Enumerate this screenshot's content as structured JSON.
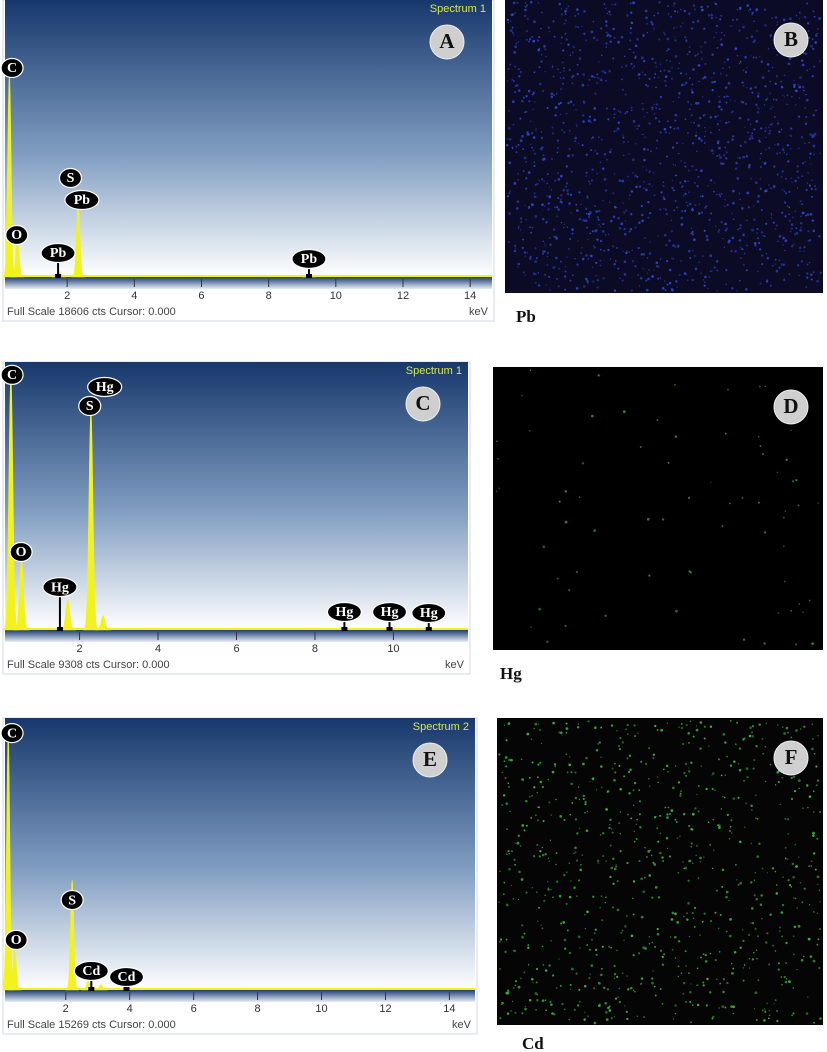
{
  "chart_data": [
    {
      "type": "spectrum",
      "title": "Spectrum 1",
      "panel_label": "A",
      "footer": "Full Scale 18606 cts Cursor: 0.000",
      "x_unit": "keV",
      "xlim": [
        0.15,
        14.65
      ],
      "xticks": [
        2,
        4,
        6,
        8,
        10,
        12,
        14
      ],
      "ylim": [
        0,
        18606
      ],
      "color": "#f2f21e",
      "peaks": {
        "x": [
          0.28,
          0.52,
          2.33,
          1.75,
          9.2
        ],
        "values": [
          13570,
          2500,
          4840,
          400,
          150
        ]
      },
      "annotations": [
        {
          "text": "C",
          "x": 0.36,
          "y": 14040,
          "pin": false
        },
        {
          "text": "O",
          "x": 0.5,
          "y": 2820,
          "pin": false
        },
        {
          "text": "S",
          "x": 2.1,
          "y": 6650,
          "pin": false
        },
        {
          "text": "Pb",
          "x": 2.44,
          "y": 5170,
          "pin": false
        },
        {
          "text": "Pb",
          "x": 1.73,
          "y": 1610,
          "pin": true
        },
        {
          "text": "Pb",
          "x": 9.2,
          "y": 1210,
          "pin": true
        }
      ]
    },
    {
      "type": "spectrum",
      "title": "Spectrum 1",
      "panel_label": "C",
      "footer": "Full Scale 9308 cts Cursor: 0.000",
      "x_unit": "keV",
      "xlim": [
        0.1,
        11.9
      ],
      "xticks": [
        2,
        4,
        6,
        8,
        10
      ],
      "ylim": [
        0,
        9308
      ],
      "color": "#f2f21e",
      "peaks": {
        "x": [
          0.25,
          0.52,
          2.29,
          1.7,
          2.6
        ],
        "values": [
          8860,
          2430,
          7640,
          1040,
          500
        ]
      },
      "annotations": [
        {
          "text": "C",
          "x": 0.28,
          "y": 8860,
          "pin": false
        },
        {
          "text": "Hg",
          "x": 2.64,
          "y": 8440,
          "pin": false
        },
        {
          "text": "S",
          "x": 2.26,
          "y": 7780,
          "pin": false
        },
        {
          "text": "O",
          "x": 0.51,
          "y": 2710,
          "pin": false
        },
        {
          "text": "Hg",
          "x": 1.5,
          "y": 1490,
          "pin": true
        },
        {
          "text": "Hg",
          "x": 8.75,
          "y": 625,
          "pin": true
        },
        {
          "text": "Hg",
          "x": 9.9,
          "y": 625,
          "pin": true
        },
        {
          "text": "Hg",
          "x": 10.9,
          "y": 590,
          "pin": true
        }
      ]
    },
    {
      "type": "spectrum",
      "title": "Spectrum 2",
      "panel_label": "E",
      "footer": "Full Scale 15269 cts Cursor: 0.000",
      "x_unit": "keV",
      "xlim": [
        0.1,
        14.8
      ],
      "xticks": [
        2,
        4,
        6,
        8,
        10,
        12,
        14
      ],
      "ylim": [
        0,
        15269
      ],
      "color": "#f2f21e",
      "peaks": {
        "x": [
          0.2,
          0.4,
          2.2,
          2.7,
          3.1
        ],
        "values": [
          14310,
          2530,
          6170,
          500,
          300
        ]
      },
      "annotations": [
        {
          "text": "C",
          "x": 0.32,
          "y": 14420,
          "pin": false
        },
        {
          "text": "O",
          "x": 0.45,
          "y": 2810,
          "pin": false
        },
        {
          "text": "S",
          "x": 2.2,
          "y": 5050,
          "pin": false
        },
        {
          "text": "Cd",
          "x": 2.8,
          "y": 1070,
          "pin": true
        },
        {
          "text": "Cd",
          "x": 3.9,
          "y": 730,
          "pin": true
        }
      ]
    }
  ],
  "maps": [
    {
      "panel_label": "B",
      "element": "Pb",
      "background": "#0b0b26",
      "dot_color": "#3444c8"
    },
    {
      "panel_label": "D",
      "element": "Hg",
      "background": "#000000",
      "dot_color": "#3f8f3f"
    },
    {
      "panel_label": "F",
      "element": "Cd",
      "background": "#050505",
      "dot_color": "#40b840"
    }
  ]
}
